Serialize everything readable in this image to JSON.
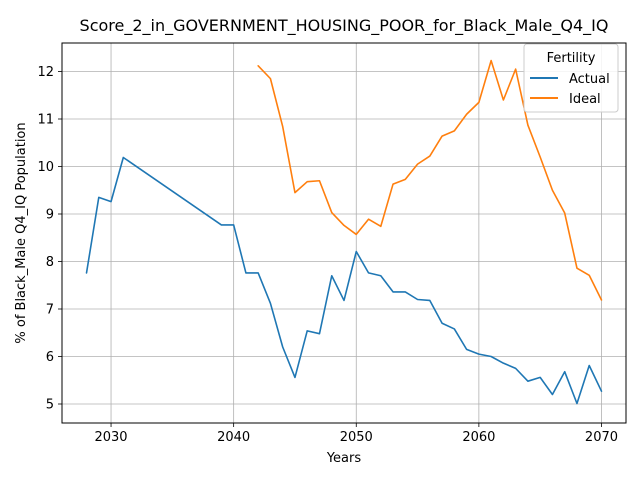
{
  "chart_data": {
    "type": "line",
    "title": "Score_2_in_GOVERNMENT_HOUSING_POOR_for_Black_Male_Q4_IQ",
    "xlabel": "Years",
    "ylabel": "% of Black_Male Q4_IQ Population",
    "xlim": [
      2026,
      2072
    ],
    "ylim": [
      4.6,
      12.6
    ],
    "xticks": [
      2030,
      2040,
      2050,
      2060,
      2070
    ],
    "yticks": [
      5,
      6,
      7,
      8,
      9,
      10,
      11,
      12
    ],
    "grid": true,
    "legend": {
      "title": "Fertility",
      "placement": "top-right"
    },
    "series": [
      {
        "name": "Actual",
        "color": "#1f77b4",
        "x": [
          2028,
          2029,
          2030,
          2031,
          2039,
          2040,
          2041,
          2042,
          2043,
          2044,
          2045,
          2046,
          2047,
          2048,
          2049,
          2050,
          2051,
          2052,
          2053,
          2054,
          2055,
          2056,
          2057,
          2058,
          2059,
          2060,
          2061,
          2062,
          2063,
          2064,
          2065,
          2066,
          2067,
          2068,
          2069,
          2070
        ],
        "y": [
          7.76,
          9.35,
          9.26,
          10.19,
          8.77,
          8.77,
          7.76,
          7.76,
          7.12,
          6.2,
          5.56,
          6.54,
          6.48,
          7.7,
          7.18,
          8.21,
          7.76,
          7.7,
          7.36,
          7.36,
          7.2,
          7.18,
          6.7,
          6.58,
          6.15,
          6.05,
          6.0,
          5.86,
          5.75,
          5.48,
          5.56,
          5.2,
          5.68,
          5.01,
          5.81,
          5.27
        ]
      },
      {
        "name": "Ideal",
        "color": "#ff7f0e",
        "x": [
          2042,
          2043,
          2044,
          2045,
          2046,
          2047,
          2048,
          2049,
          2050,
          2051,
          2052,
          2053,
          2054,
          2055,
          2056,
          2057,
          2058,
          2059,
          2060,
          2061,
          2062,
          2063,
          2064,
          2065,
          2066,
          2067,
          2068,
          2069,
          2070
        ],
        "y": [
          12.12,
          11.85,
          10.84,
          9.45,
          9.68,
          9.7,
          9.03,
          8.76,
          8.57,
          8.89,
          8.74,
          9.63,
          9.73,
          10.05,
          10.22,
          10.64,
          10.75,
          11.1,
          11.35,
          12.23,
          11.4,
          12.05,
          10.87,
          10.2,
          9.5,
          9.02,
          7.86,
          7.71,
          7.19
        ]
      }
    ]
  }
}
